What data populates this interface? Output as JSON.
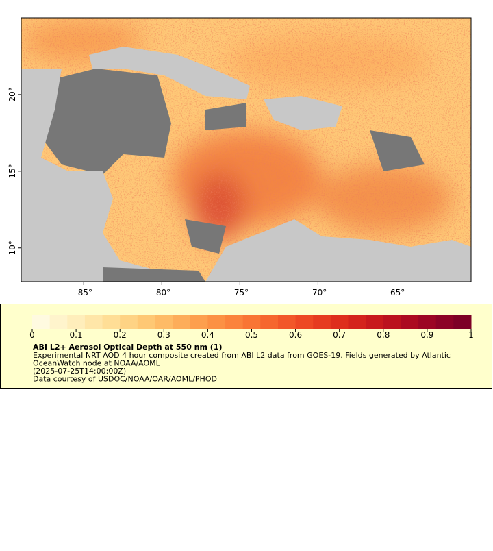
{
  "map": {
    "xlim": [
      -89,
      -60.2
    ],
    "ylim": [
      7.8,
      25
    ],
    "xticks": [
      {
        "value": -85,
        "label": "-85°"
      },
      {
        "value": -80,
        "label": "-80°"
      },
      {
        "value": -75,
        "label": "-75°"
      },
      {
        "value": -70,
        "label": "-70°"
      },
      {
        "value": -65,
        "label": "-65°"
      }
    ],
    "yticks": [
      {
        "value": 10,
        "label": "10°"
      },
      {
        "value": 15,
        "label": "15°"
      },
      {
        "value": 20,
        "label": "20°"
      }
    ]
  },
  "colorbar": {
    "range": [
      0,
      1
    ],
    "ticks": [
      0,
      0.1,
      0.2,
      0.3,
      0.4,
      0.5,
      0.6,
      0.7,
      0.8,
      0.9,
      1
    ],
    "colors": [
      "#fffae0",
      "#fff4cc",
      "#ffeebb",
      "#ffe6a8",
      "#ffde96",
      "#fed384",
      "#fec874",
      "#febb66",
      "#fdad5a",
      "#fd9f4e",
      "#fc9144",
      "#fb833c",
      "#f97534",
      "#f6662e",
      "#f25729",
      "#ed4824",
      "#e63b20",
      "#de2e1d",
      "#d4231c",
      "#c8191c",
      "#bb111e",
      "#ac0a21",
      "#9c0524",
      "#8c0226",
      "#7d0026"
    ]
  },
  "legend": {
    "title": "ABI L2+ Aerosol Optical Depth at 550 nm (1)",
    "lines": [
      "Experimental NRT AOD 4 hour composite created from ABI L2 data from GOES-19. Fields generated by Atlantic",
      "OceanWatch node at NOAA/AOML",
      "(2025-07-25T14:00:00Z)",
      "Data courtesy of USDOC/NOAA/OAR/AOML/PHOD"
    ]
  }
}
